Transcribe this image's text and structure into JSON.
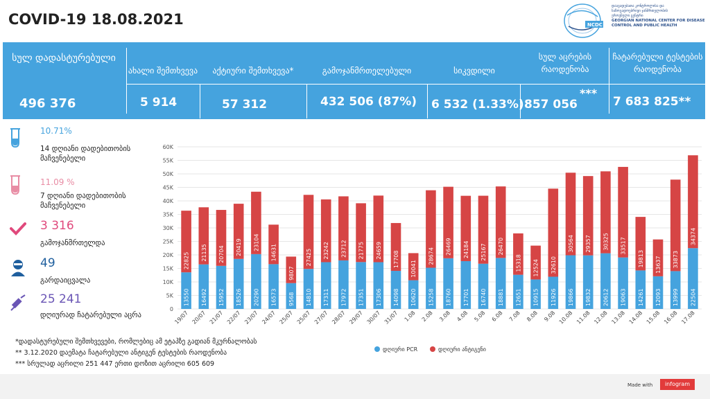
{
  "title": "COVID-19 18.08.2021",
  "logo": {
    "abbr": "NCDC",
    "line1": "დაავადებათა კონტროლისა და",
    "line2": "საზოგადოებრივი ჯანმრთელობის",
    "line3": "ეროვნული ცენტრი",
    "line4": "GEORGIAN NATIONAL CENTER FOR DISEASE",
    "line5": "CONTROL AND PUBLIC HEALTH"
  },
  "banner": {
    "total_label": "სულ დადასტურებული",
    "total_value": "496 376",
    "stats": [
      {
        "label": "ახალი შემთხვევა",
        "value": "5 914"
      },
      {
        "label": "აქტიური შემთხვევა*",
        "value": "57 312"
      },
      {
        "label": "გამოჯანმრთელებული",
        "value": "432 506 (87%)"
      },
      {
        "label": "სიკვდილი",
        "value": "6 532 (1.33%)"
      },
      {
        "label": "სულ აცრების რაოდენობა",
        "value": "857 056",
        "sup": "***"
      },
      {
        "label": "ჩატარებული ტესტების რაოდენობა",
        "value": "7 683 825**"
      }
    ]
  },
  "sidebar": [
    {
      "value": "10.71%",
      "label": "14 დღიანი დადებითობის მაჩვენებელი",
      "color": "#45a3de",
      "icon": "test-tube-icon"
    },
    {
      "value": "11.09 %",
      "label": "7 დღიანი დადებითობის მაჩვენებელი",
      "color": "#e88ca4",
      "icon": "test-tube-icon"
    },
    {
      "value": "3 316",
      "label": "გამოჯანმრთელდა",
      "color": "#e0497c",
      "icon": "checkmark-icon"
    },
    {
      "value": "49",
      "label": "გარდაიცვალა",
      "color": "#1f5f9e",
      "icon": "person-icon"
    },
    {
      "value": "25 241",
      "label": "დღიურად ჩატარებული აცრა",
      "color": "#6a55b5",
      "icon": "syringe-icon"
    }
  ],
  "chart_data": {
    "type": "bar",
    "stacked": true,
    "categories": [
      "19/07",
      "20/07",
      "21/07",
      "22/07",
      "23/07",
      "24/07",
      "25/07",
      "25/07",
      "27/07",
      "28/07",
      "29/07",
      "30/07",
      "31/07",
      "1.08",
      "2.08",
      "3.08",
      "4.08",
      "5.08",
      "6.08",
      "7.08",
      "8.08",
      "9.08",
      "10.08",
      "11.08",
      "12.08",
      "13.08",
      "14.08",
      "15.08",
      "16.08",
      "17.08"
    ],
    "series": [
      {
        "name": "დღიური PCR",
        "color": "#45a3de",
        "values": [
          13550,
          16492,
          15952,
          18526,
          20290,
          16573,
          9568,
          14810,
          17311,
          17972,
          17351,
          17306,
          14098,
          10620,
          15258,
          18760,
          17701,
          16740,
          18881,
          12651,
          10915,
          11926,
          19866,
          19832,
          20612,
          19063,
          14261,
          12093,
          13999,
          22504
        ]
      },
      {
        "name": "დღიური ანტიგენი",
        "color": "#d64545",
        "values": [
          22825,
          21135,
          20704,
          20419,
          23104,
          14631,
          9807,
          27425,
          23242,
          23712,
          21775,
          24659,
          17708,
          10041,
          28674,
          26469,
          24184,
          25167,
          26470,
          15318,
          12524,
          32610,
          30564,
          29357,
          30325,
          33517,
          19813,
          13637,
          33873,
          34374
        ]
      }
    ],
    "y_ticks": [
      "0",
      "5K",
      "10K",
      "15K",
      "20K",
      "25K",
      "30K",
      "35K",
      "40K",
      "45K",
      "50K",
      "55K",
      "60K"
    ],
    "ylim": [
      0,
      60000
    ],
    "legend_position": "bottom-center"
  },
  "footnotes": [
    "*დადასტურებული შემთხვევები, რომლებიც ამ ეტაპზე გადიან მკურნალობას",
    "** 3.12.2020 დაემატა ჩატარებული ანტიგენ ტესტების რაოდენობა",
    "*** სრულად აცრილი 251 447 ერთი დოზით აცრილი 605 609"
  ],
  "made_with": "Made with",
  "infogram": "infogram"
}
